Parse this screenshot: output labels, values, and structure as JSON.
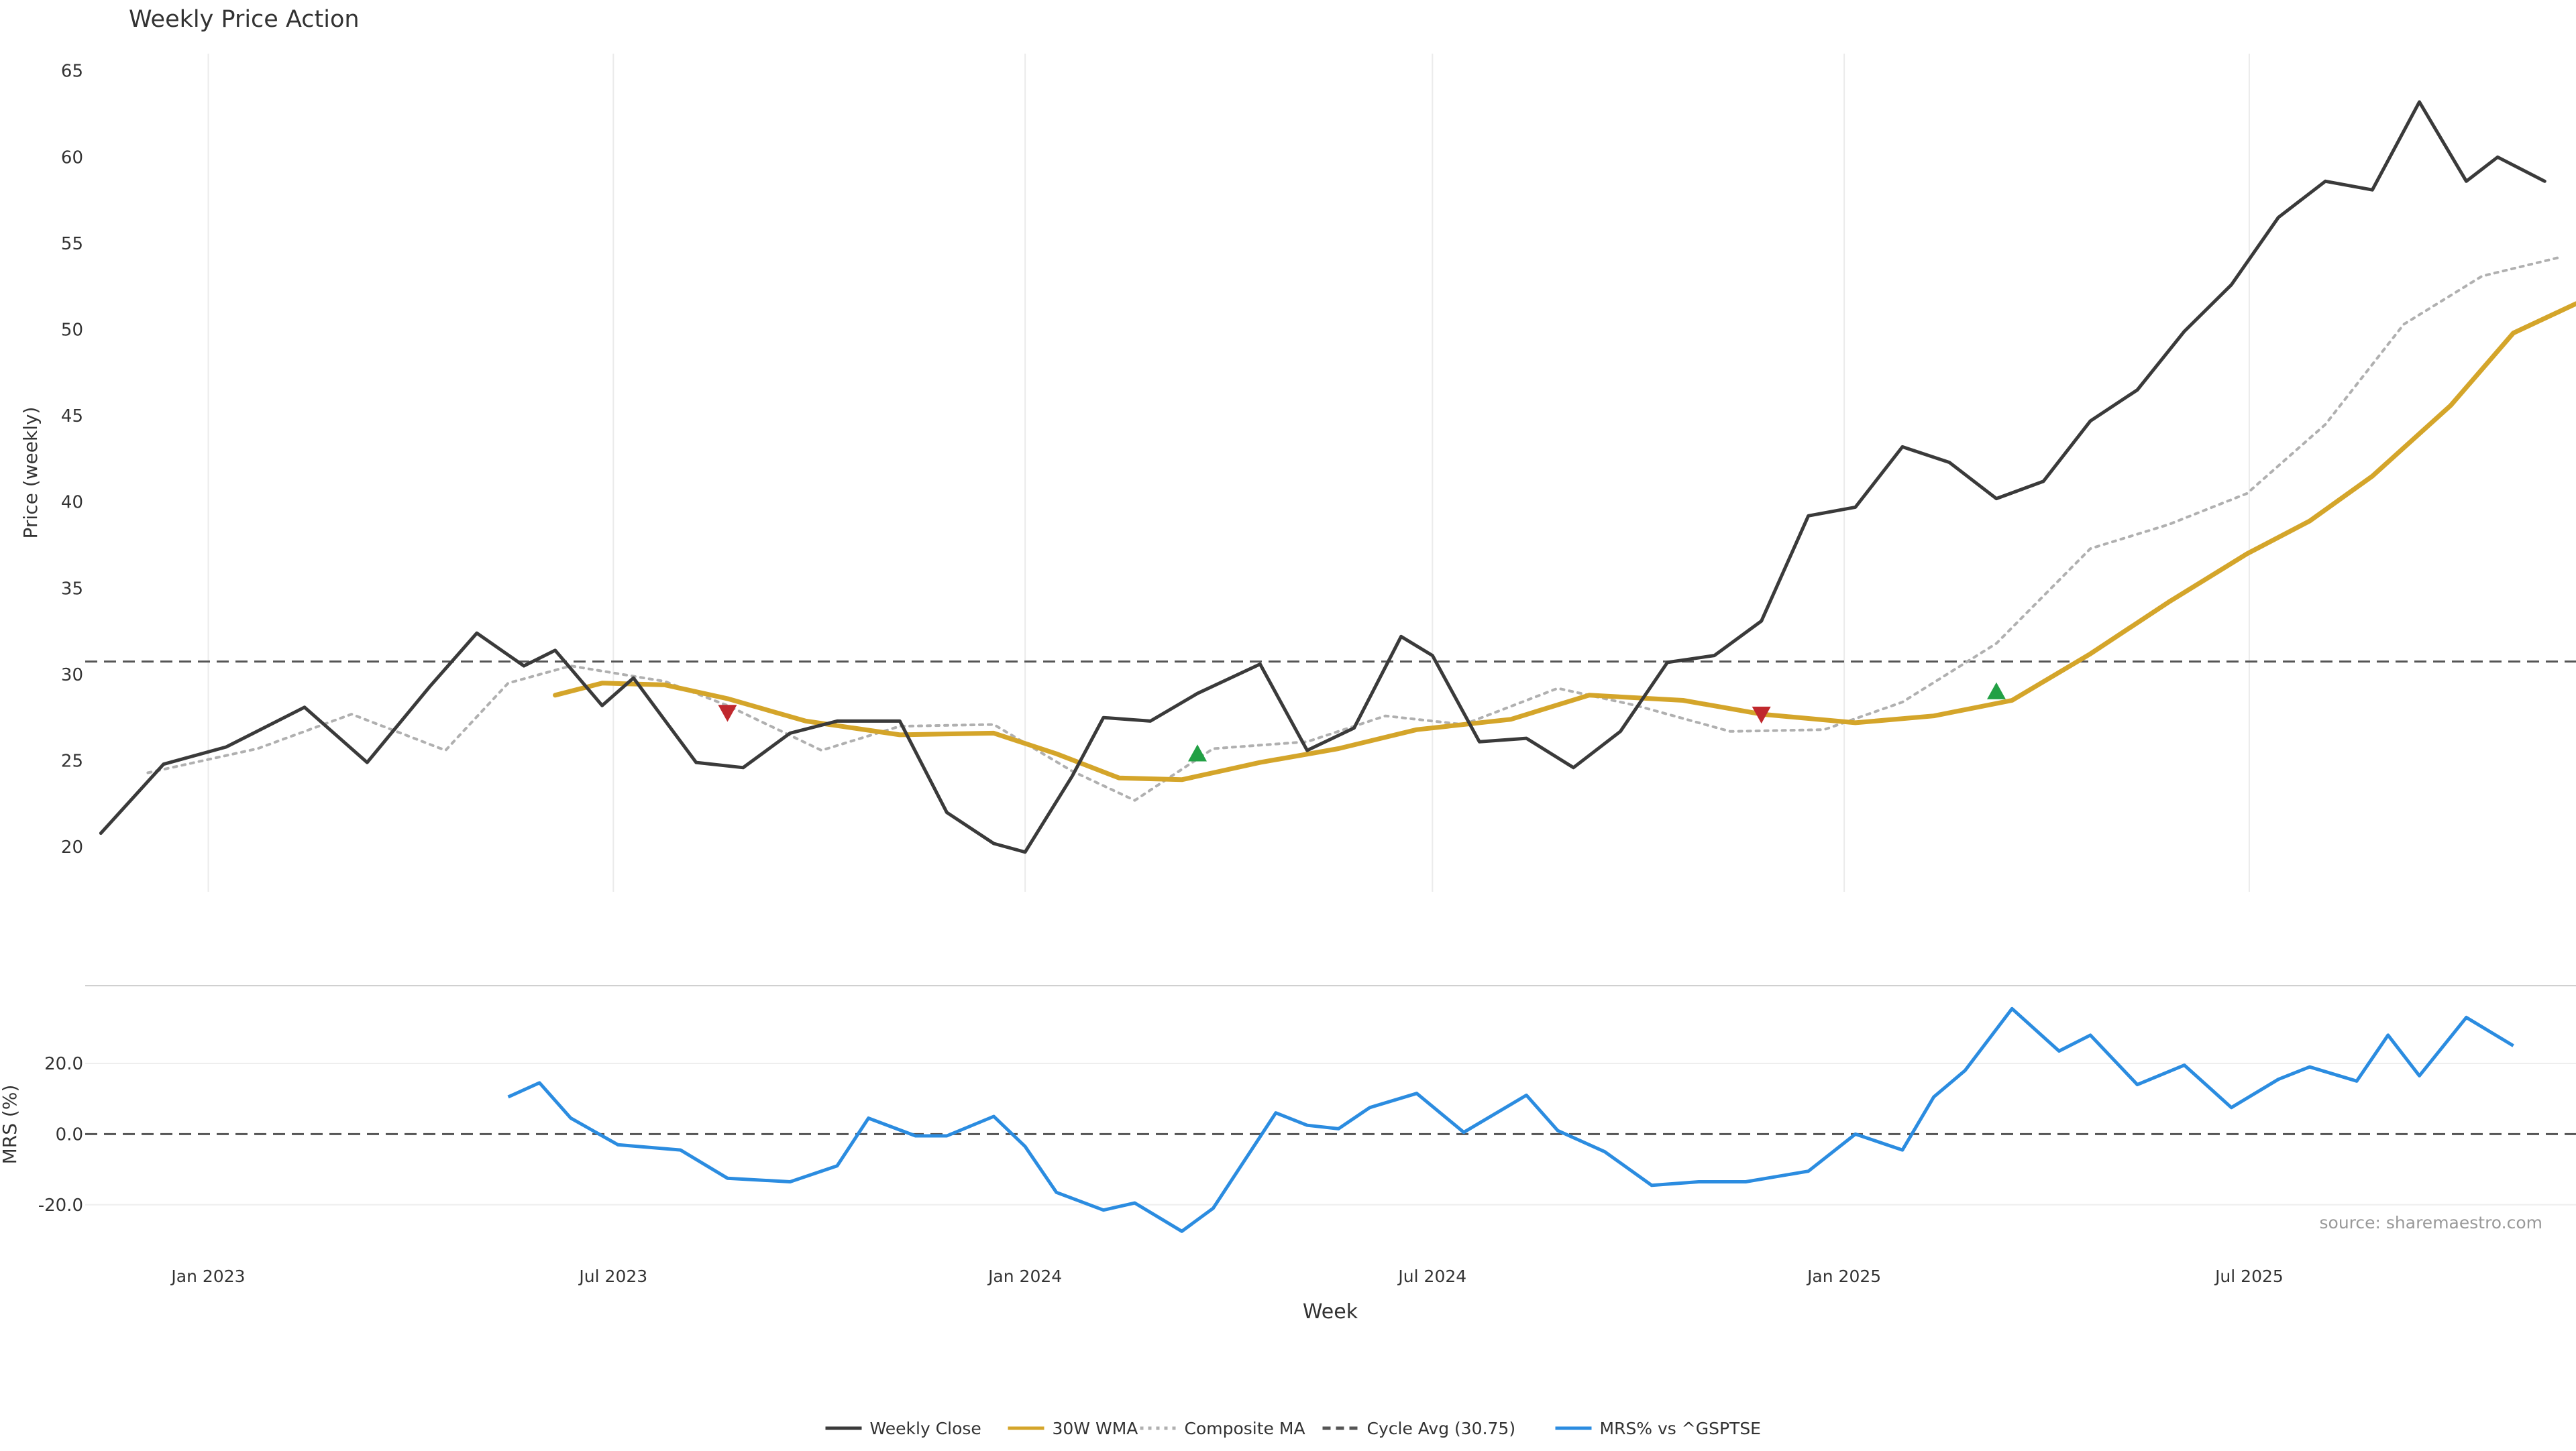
{
  "chart_data": {
    "title": "Weekly Price Action",
    "type": "line",
    "price_panel": {
      "ylabel": "Price (weekly)",
      "ylim": [
        17.4,
        66
      ],
      "yticks": [
        20,
        25,
        30,
        35,
        40,
        45,
        50,
        55,
        60,
        65
      ],
      "grid": "vertical",
      "cycle_avg": 30.75,
      "series": [
        {
          "name": "Weekly Close",
          "color": "#3a3a3a",
          "style": "solid",
          "x": [
            "2022-11-14",
            "2022-12-12",
            "2023-01-09",
            "2023-02-13",
            "2023-03-13",
            "2023-04-10",
            "2023-05-01",
            "2023-05-22",
            "2023-06-05",
            "2023-06-26",
            "2023-07-10",
            "2023-08-07",
            "2023-08-28",
            "2023-09-18",
            "2023-10-09",
            "2023-11-06",
            "2023-11-27",
            "2023-12-18",
            "2024-01-01",
            "2024-01-22",
            "2024-02-05",
            "2024-02-26",
            "2024-03-18",
            "2024-04-15",
            "2024-05-06",
            "2024-05-27",
            "2024-06-17",
            "2024-07-01",
            "2024-07-22",
            "2024-08-12",
            "2024-09-02",
            "2024-09-23",
            "2024-10-14",
            "2024-11-04",
            "2024-11-25",
            "2024-12-16",
            "2025-01-06",
            "2025-01-27",
            "2025-02-17",
            "2025-03-10",
            "2025-03-31",
            "2025-04-21",
            "2025-05-12",
            "2025-06-02",
            "2025-06-23",
            "2025-07-14",
            "2025-08-04",
            "2025-08-25",
            "2025-09-15",
            "2025-10-06",
            "2025-10-20",
            "2025-11-10"
          ],
          "y": [
            20.8,
            24.8,
            25.8,
            28.1,
            24.9,
            29.3,
            32.4,
            30.5,
            31.4,
            28.2,
            29.8,
            24.9,
            24.6,
            26.6,
            27.3,
            27.3,
            22.0,
            20.2,
            19.7,
            24.1,
            27.5,
            27.3,
            28.9,
            30.6,
            25.6,
            26.9,
            32.2,
            31.1,
            26.1,
            26.3,
            24.6,
            26.7,
            30.7,
            31.1,
            33.1,
            39.2,
            39.7,
            43.2,
            42.3,
            40.2,
            41.2,
            44.7,
            46.5,
            49.9,
            52.6,
            56.5,
            58.6,
            58.1,
            63.2,
            58.6,
            60.0,
            58.6
          ]
        },
        {
          "name": "30W WMA",
          "color": "#d4a52a",
          "style": "solid",
          "x": [
            "2023-06-05",
            "2023-06-26",
            "2023-07-24",
            "2023-08-21",
            "2023-09-25",
            "2023-11-06",
            "2023-12-18",
            "2024-01-15",
            "2024-02-12",
            "2024-03-11",
            "2024-04-15",
            "2024-05-20",
            "2024-06-24",
            "2024-08-05",
            "2024-09-09",
            "2024-10-21",
            "2024-11-25",
            "2025-01-06",
            "2025-02-10",
            "2025-03-17",
            "2025-04-21",
            "2025-05-26",
            "2025-06-30",
            "2025-07-28",
            "2025-08-25",
            "2025-09-29",
            "2025-10-27",
            "2025-11-24"
          ],
          "y": [
            28.8,
            29.5,
            29.4,
            28.6,
            27.3,
            26.5,
            26.6,
            25.4,
            24.0,
            23.9,
            24.9,
            25.7,
            26.8,
            27.4,
            28.8,
            28.5,
            27.7,
            27.2,
            27.6,
            28.5,
            31.2,
            34.2,
            37.0,
            38.9,
            41.5,
            45.6,
            49.8,
            51.5
          ]
        },
        {
          "name": "Composite MA",
          "color": "#b0b0b0",
          "style": "dotted",
          "x": [
            "2022-12-05",
            "2023-01-23",
            "2023-03-06",
            "2023-04-17",
            "2023-05-15",
            "2023-06-12",
            "2023-07-24",
            "2023-08-21",
            "2023-10-02",
            "2023-11-06",
            "2023-12-18",
            "2024-01-22",
            "2024-02-19",
            "2024-03-25",
            "2024-05-06",
            "2024-06-10",
            "2024-07-15",
            "2024-08-26",
            "2024-09-30",
            "2024-11-11",
            "2024-12-23",
            "2025-01-27",
            "2025-03-10",
            "2025-04-21",
            "2025-05-26",
            "2025-06-30",
            "2025-08-04",
            "2025-09-08",
            "2025-10-13",
            "2025-11-17"
          ],
          "y": [
            24.3,
            25.7,
            27.7,
            25.6,
            29.5,
            30.5,
            29.6,
            28.2,
            25.6,
            27.0,
            27.1,
            24.4,
            22.7,
            25.7,
            26.1,
            27.6,
            27.1,
            29.2,
            28.2,
            26.7,
            26.8,
            28.4,
            31.8,
            37.3,
            38.7,
            40.5,
            44.5,
            50.3,
            53.1,
            54.2
          ]
        }
      ],
      "signals": [
        {
          "type": "sell",
          "color": "#c0282d",
          "x": "2023-08-21",
          "y": 27.8
        },
        {
          "type": "buy",
          "color": "#22a045",
          "x": "2024-03-18",
          "y": 25.4
        },
        {
          "type": "sell",
          "color": "#c0282d",
          "x": "2024-11-25",
          "y": 27.7
        },
        {
          "type": "buy",
          "color": "#22a045",
          "x": "2025-03-10",
          "y": 29.0
        }
      ]
    },
    "mrs_panel": {
      "ylabel": "MRS (%)",
      "ylim": [
        -32,
        42
      ],
      "yticks": [
        -20.0,
        0.0,
        20.0
      ],
      "zero_line": true,
      "series": {
        "name": "MRS% vs ^GSPTSE",
        "color": "#2b8ce0",
        "x": [
          "2023-05-15",
          "2023-05-29",
          "2023-06-12",
          "2023-07-03",
          "2023-07-31",
          "2023-08-21",
          "2023-09-18",
          "2023-10-09",
          "2023-10-23",
          "2023-11-13",
          "2023-11-27",
          "2023-12-18",
          "2024-01-01",
          "2024-01-15",
          "2024-02-05",
          "2024-02-19",
          "2024-03-11",
          "2024-03-25",
          "2024-04-22",
          "2024-05-06",
          "2024-05-20",
          "2024-06-03",
          "2024-06-24",
          "2024-07-15",
          "2024-08-12",
          "2024-08-26",
          "2024-09-16",
          "2024-10-07",
          "2024-10-28",
          "2024-11-18",
          "2024-12-16",
          "2025-01-06",
          "2025-01-27",
          "2025-02-10",
          "2025-02-24",
          "2025-03-17",
          "2025-04-07",
          "2025-04-21",
          "2025-05-12",
          "2025-06-02",
          "2025-06-23",
          "2025-07-14",
          "2025-07-28",
          "2025-08-18",
          "2025-09-01",
          "2025-09-15",
          "2025-10-06",
          "2025-10-27"
        ],
        "y": [
          10.5,
          14.5,
          4.5,
          -3.0,
          -4.5,
          -12.5,
          -13.5,
          -9.0,
          4.5,
          -0.5,
          -0.5,
          5.0,
          -3.5,
          -16.5,
          -21.5,
          -19.5,
          -27.5,
          -21.0,
          6.0,
          2.5,
          1.5,
          7.5,
          11.5,
          0.5,
          11.0,
          1.0,
          -5.0,
          -14.5,
          -13.5,
          -13.5,
          -10.5,
          0.0,
          -4.5,
          10.5,
          18.0,
          35.5,
          23.5,
          28.0,
          14.0,
          19.5,
          7.5,
          15.5,
          19.0,
          15.0,
          28.0,
          16.5,
          33.0,
          25.0
        ]
      }
    },
    "xaxis": {
      "xlabel": "Week",
      "range": [
        "2022-11-07",
        "2025-11-24"
      ],
      "ticks": [
        {
          "label": "Jan 2023",
          "date": "2023-01-01"
        },
        {
          "label": "Jul 2023",
          "date": "2023-07-01"
        },
        {
          "label": "Jan 2024",
          "date": "2024-01-01"
        },
        {
          "label": "Jul 2024",
          "date": "2024-07-01"
        },
        {
          "label": "Jan 2025",
          "date": "2025-01-01"
        },
        {
          "label": "Jul 2025",
          "date": "2025-07-01"
        }
      ]
    },
    "legend": {
      "placement": "bottom-center",
      "entries": [
        {
          "label": "Weekly Close",
          "color": "#3a3a3a",
          "style": "solid"
        },
        {
          "label": "30W WMA",
          "color": "#d4a52a",
          "style": "solid"
        },
        {
          "label": "Composite MA",
          "color": "#b0b0b0",
          "style": "dotted"
        },
        {
          "label": "Cycle Avg (30.75)",
          "color": "#555555",
          "style": "dashed"
        },
        {
          "label": "MRS% vs ^GSPTSE",
          "color": "#2b8ce0",
          "style": "solid"
        }
      ]
    },
    "source": "source: sharemaestro.com"
  }
}
